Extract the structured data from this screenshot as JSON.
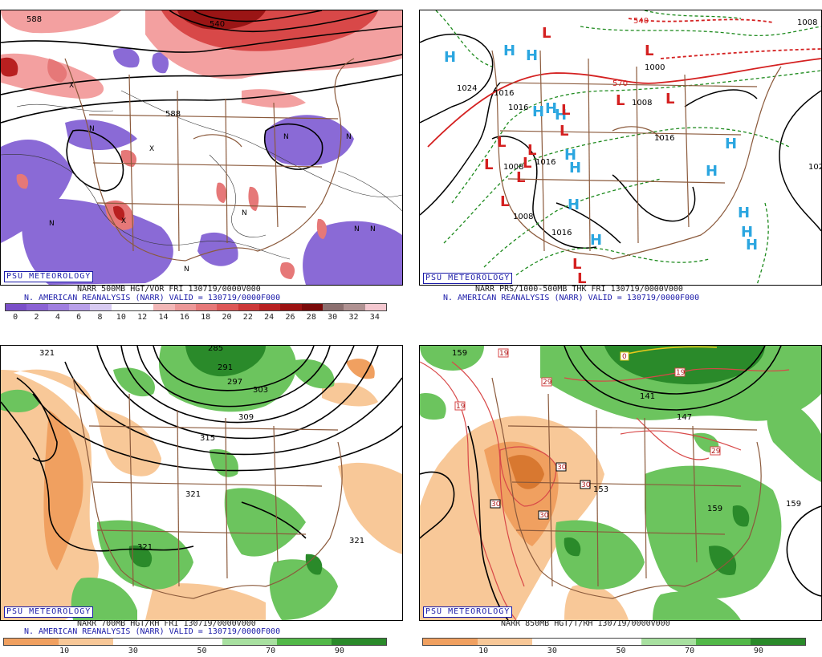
{
  "branding": "PSU METEOROLOGY",
  "panels": {
    "tl": {
      "title1": "NARR 500MB HGT/VOR FRI 130719/0000V000",
      "title2": "N. AMERICAN REANALYSIS (NARR) VALID = 130719/0000F000",
      "colorbar_labels": [
        "0",
        "2",
        "4",
        "6",
        "8",
        "10",
        "12",
        "14",
        "16",
        "18",
        "20",
        "22",
        "24",
        "26",
        "28",
        "30",
        "32",
        "34"
      ],
      "colorbar_colors": [
        "#7a4fc8",
        "#8b62d4",
        "#a07fe0",
        "#b9a0ea",
        "#d8cbf2",
        "#ffffff",
        "#ffffff",
        "#f2b7b7",
        "#ec9898",
        "#e67878",
        "#dd5757",
        "#cc3838",
        "#b82020",
        "#9c1212",
        "#7a0a0a",
        "#8c7070",
        "#b09292",
        "#f4c8d0"
      ],
      "contour_labels": [
        "588",
        "588",
        "540"
      ]
    },
    "tr": {
      "title1": "NARR PRS/1000-500MB THK FRI 130719/0000V000",
      "title2": "N. AMERICAN REANALYSIS (NARR) VALID = 130719/0000F000",
      "contour_labels": [
        "1024",
        "1016",
        "1016",
        "1008",
        "1008",
        "1016",
        "1016",
        "1008",
        "1016",
        "570",
        "540",
        "1000",
        "102",
        "1008"
      ],
      "highs_count": 15,
      "lows_count": 14
    },
    "bl": {
      "title1": "NARR 700MB HGT/RH FRI 130719/0000V000",
      "title2": "N. AMERICAN REANALYSIS (NARR) VALID = 130719/0000F000",
      "colorbar_labels": [
        "10",
        "30",
        "50",
        "70",
        "90"
      ],
      "colorbar_colors": [
        "#f0a060",
        "#f8c898",
        "#ffffff",
        "#ffffff",
        "#a8e0a0",
        "#52b848",
        "#2a8a2a"
      ],
      "contour_labels": [
        "321",
        "285",
        "291",
        "297",
        "303",
        "309",
        "315",
        "321",
        "321",
        "321"
      ]
    },
    "br": {
      "title1": "NARR 850MB HGT/T/RH 130719/0000V000",
      "colorbar_labels": [
        "10",
        "30",
        "50",
        "70",
        "90"
      ],
      "colorbar_colors": [
        "#f0a060",
        "#f8c898",
        "#ffffff",
        "#ffffff",
        "#a8e0a0",
        "#52b848",
        "#2a8a2a"
      ],
      "contour_labels": [
        "159",
        "141",
        "147",
        "153",
        "159",
        "159"
      ],
      "temp_labels": [
        "19",
        "29",
        "19",
        "19",
        "29",
        "30",
        "30",
        "30",
        "30",
        "0"
      ]
    }
  }
}
